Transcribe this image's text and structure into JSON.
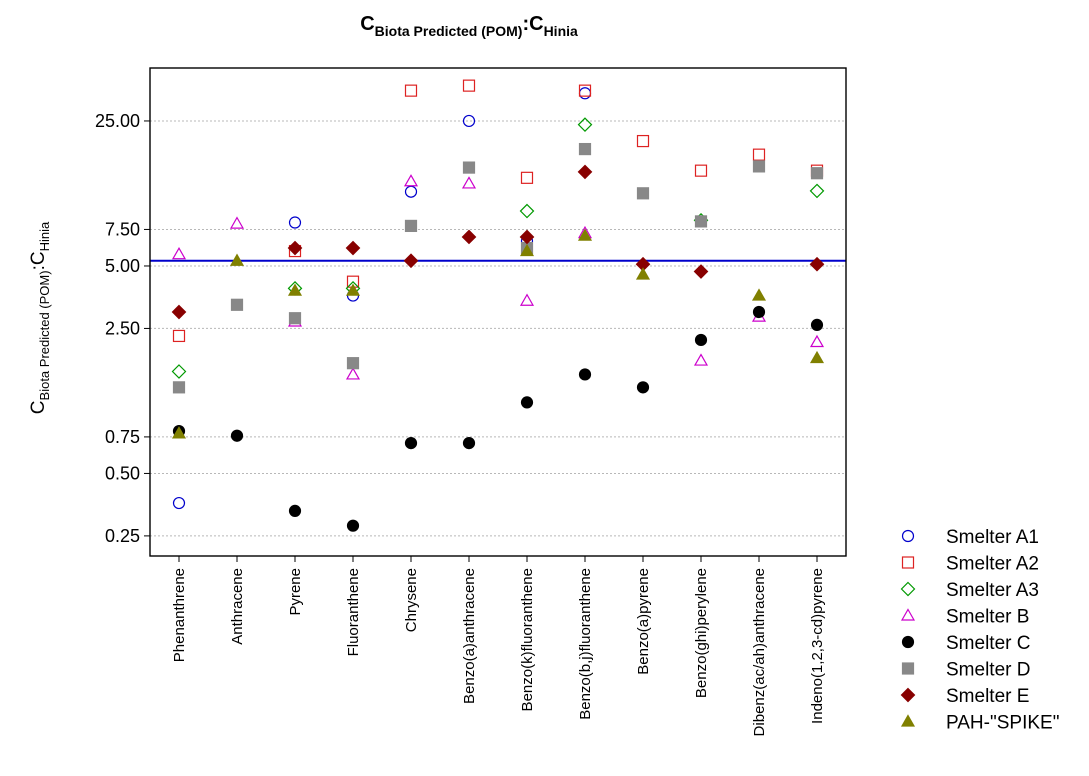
{
  "chart_data": {
    "type": "scatter",
    "title": {
      "main": "C",
      "sub1": "Biota Predicted (POM)",
      "sep": ":C",
      "sub2": "Hinia"
    },
    "ylabel": {
      "main": "C",
      "sub1": "Biota Predicted (POM)",
      "sep": ":C",
      "sub2": "Hinia"
    },
    "y_scale": "log",
    "ylim": [
      0.2,
      45
    ],
    "yticks": [
      {
        "value": 0.25,
        "label": "0.25"
      },
      {
        "value": 0.5,
        "label": "0.50"
      },
      {
        "value": 0.75,
        "label": "0.75"
      },
      {
        "value": 2.5,
        "label": "2.50"
      },
      {
        "value": 5.0,
        "label": "5.00"
      },
      {
        "value": 7.5,
        "label": "7.50"
      },
      {
        "value": 25.0,
        "label": "25.00"
      }
    ],
    "grid": true,
    "legend_position": "bottom-right",
    "reference_line": {
      "value": 5.3,
      "color": "#0000cc"
    },
    "categories": [
      "Phenanthrene",
      "Anthracene",
      "Pyrene",
      "Fluoranthene",
      "Chrysene",
      "Benzo(a)anthracene",
      "Benzo(k)fluoranthene",
      "Benzo(b,j)fluoranthene",
      "Benzo(a)pyrene",
      "Benzo(ghi)perylene",
      "Dibenz(ac/ah)anthracene",
      "Indeno(1,2,3-cd)pyrene"
    ],
    "series": [
      {
        "name": "Smelter A1",
        "marker": "circle-open",
        "color": "#0000cc",
        "values": [
          0.36,
          null,
          8.1,
          3.6,
          11.4,
          25.0,
          6.6,
          34.0,
          null,
          null,
          null,
          null
        ]
      },
      {
        "name": "Smelter A2",
        "marker": "square-open",
        "color": "#dd2222",
        "values": [
          2.3,
          null,
          5.9,
          4.2,
          35.0,
          37.0,
          13.3,
          35.0,
          20.0,
          14.4,
          17.2,
          14.4
        ]
      },
      {
        "name": "Smelter A3",
        "marker": "diamond-open",
        "color": "#009900",
        "values": [
          1.55,
          null,
          3.9,
          3.9,
          null,
          null,
          9.2,
          24.0,
          null,
          8.3,
          null,
          11.5
        ]
      },
      {
        "name": "Smelter B",
        "marker": "triangle-open",
        "color": "#cc00cc",
        "values": [
          5.7,
          8.0,
          2.7,
          1.5,
          12.8,
          12.5,
          3.4,
          7.2,
          null,
          1.75,
          2.85,
          2.15
        ]
      },
      {
        "name": "Smelter C",
        "marker": "circle-filled",
        "color": "#000000",
        "values": [
          0.8,
          0.76,
          0.33,
          0.28,
          0.7,
          0.7,
          1.1,
          1.5,
          1.3,
          2.2,
          3.0,
          2.6
        ]
      },
      {
        "name": "Smelter D",
        "marker": "square-filled",
        "color": "#888888",
        "values": [
          1.3,
          3.25,
          2.8,
          1.7,
          7.8,
          14.9,
          6.1,
          18.3,
          11.2,
          8.2,
          15.1,
          14.0
        ]
      },
      {
        "name": "Smelter E",
        "marker": "diamond-filled",
        "color": "#880000",
        "values": [
          3.0,
          null,
          6.1,
          6.1,
          5.3,
          6.9,
          6.9,
          14.2,
          5.1,
          4.7,
          null,
          5.1
        ]
      },
      {
        "name": "PAH-\"SPIKE\"",
        "marker": "triangle-filled",
        "color": "#808000",
        "values": [
          0.78,
          5.3,
          3.8,
          3.8,
          null,
          null,
          5.9,
          7.0,
          4.55,
          null,
          3.6,
          1.8
        ]
      }
    ]
  }
}
